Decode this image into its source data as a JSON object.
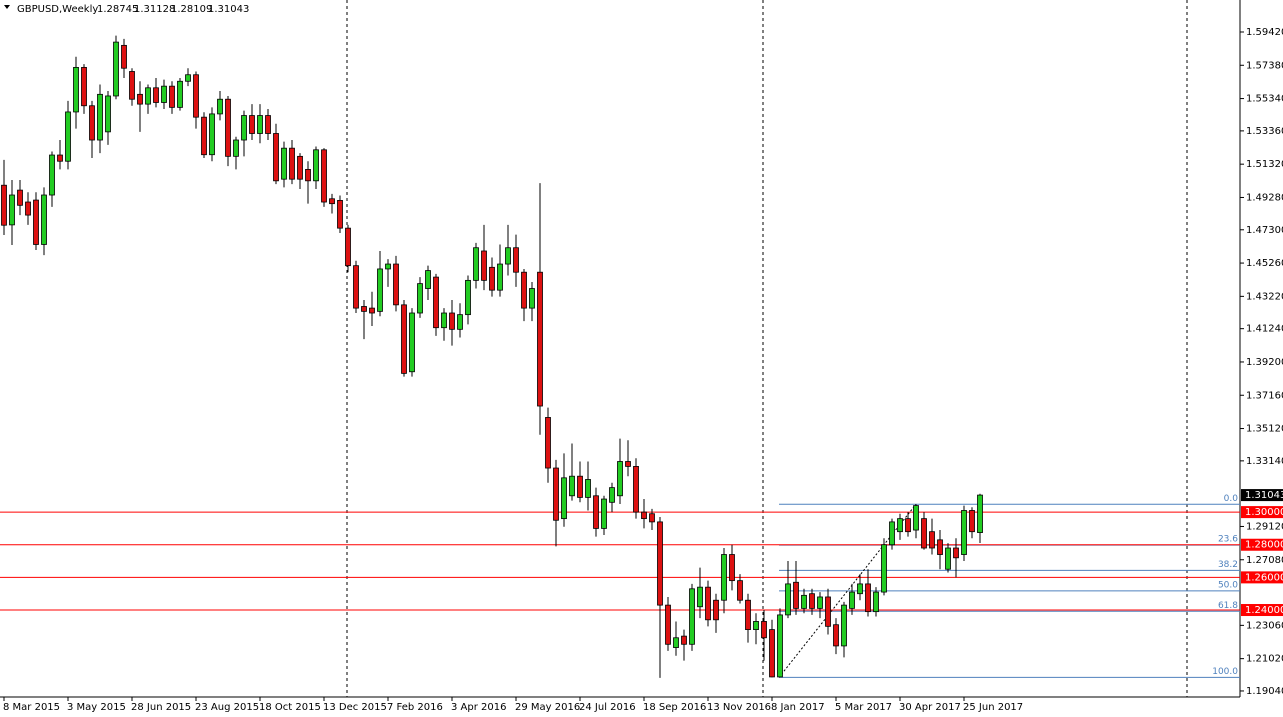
{
  "chart_data": {
    "type": "candlestick",
    "title": "GBPUSD,Weekly",
    "categories": [
      "8 Mar 2015",
      null,
      null,
      null,
      null,
      null,
      null,
      null,
      "3 May 2015",
      null,
      null,
      null,
      null,
      null,
      null,
      null,
      "28 Jun 2015",
      null,
      null,
      null,
      null,
      null,
      null,
      null,
      "23 Aug 2015",
      null,
      null,
      null,
      null,
      null,
      null,
      null,
      "18 Oct 2015",
      null,
      null,
      null,
      null,
      null,
      null,
      null,
      "13 Dec 2015",
      null,
      null,
      null,
      null,
      null,
      null,
      null,
      "7 Feb 2016",
      null,
      null,
      null,
      null,
      null,
      null,
      null,
      "3 Apr 2016",
      null,
      null,
      null,
      null,
      null,
      null,
      null,
      "29 May 2016",
      null,
      null,
      null,
      null,
      null,
      null,
      null,
      "24 Jul 2016",
      null,
      null,
      null,
      null,
      null,
      null,
      null,
      "18 Sep 2016",
      null,
      null,
      null,
      null,
      null,
      null,
      null,
      "13 Nov 2016",
      null,
      null,
      null,
      null,
      null,
      null,
      null,
      "8 Jan 2017",
      null,
      null,
      null,
      null,
      null,
      null,
      null,
      "5 Mar 2017",
      null,
      null,
      null,
      null,
      null,
      null,
      null,
      "30 Apr 2017",
      null,
      null,
      null,
      null,
      null,
      null,
      null,
      "25 Jun 2017",
      null,
      null
    ],
    "open": [
      1.5003,
      1.476,
      1.4973,
      1.49,
      1.4912,
      1.464,
      1.4943,
      1.5188,
      1.515,
      1.5452,
      1.5725,
      1.549,
      1.528,
      1.533,
      1.555,
      1.586,
      1.57,
      1.556,
      1.55,
      1.56,
      1.551,
      1.561,
      1.548,
      1.564,
      1.568,
      1.542,
      1.519,
      1.544,
      1.553,
      1.518,
      1.528,
      1.543,
      1.532,
      1.543,
      1.532,
      1.504,
      1.523,
      1.518,
      1.51,
      1.503,
      1.522,
      1.492,
      1.491,
      1.474,
      1.451,
      1.426,
      1.425,
      1.423,
      1.449,
      1.452,
      1.427,
      1.386,
      1.422,
      1.437,
      1.444,
      1.413,
      1.422,
      1.412,
      1.421,
      1.442,
      1.46,
      1.45,
      1.436,
      1.452,
      1.462,
      1.447,
      1.425,
      1.447,
      1.358,
      1.327,
      1.296,
      1.31,
      1.322,
      1.309,
      1.31,
      1.29,
      1.306,
      1.31,
      1.331,
      1.328,
      1.3,
      1.299,
      1.294,
      1.243,
      1.217,
      1.224,
      1.219,
      1.242,
      1.254,
      1.246,
      1.246,
      1.274,
      1.258,
      1.246,
      1.228,
      1.233,
      1.228,
      1.199,
      1.237,
      1.257,
      1.241,
      1.25,
      1.241,
      1.248,
      1.231,
      1.218,
      1.241,
      1.25,
      1.256,
      1.239,
      1.251,
      1.28,
      1.288,
      1.296,
      1.289,
      1.296,
      1.288,
      1.283,
      1.265,
      1.278,
      1.274,
      1.301,
      1.28745
    ],
    "high": [
      1.5158,
      1.5035,
      1.5035,
      1.496,
      1.496,
      1.499,
      1.521,
      1.528,
      1.552,
      1.579,
      1.5745,
      1.552,
      1.562,
      1.558,
      1.592,
      1.59,
      1.572,
      1.564,
      1.562,
      1.566,
      1.565,
      1.564,
      1.566,
      1.572,
      1.57,
      1.545,
      1.548,
      1.558,
      1.555,
      1.53,
      1.546,
      1.55,
      1.55,
      1.547,
      1.538,
      1.527,
      1.528,
      1.52,
      1.515,
      1.524,
      1.523,
      1.495,
      1.494,
      1.476,
      1.454,
      1.43,
      1.435,
      1.46,
      1.455,
      1.457,
      1.43,
      1.425,
      1.444,
      1.451,
      1.446,
      1.425,
      1.43,
      1.428,
      1.445,
      1.465,
      1.476,
      1.456,
      1.464,
      1.476,
      1.47,
      1.449,
      1.441,
      1.5016,
      1.364,
      1.332,
      1.336,
      1.342,
      1.331,
      1.331,
      1.315,
      1.31,
      1.318,
      1.345,
      1.344,
      1.333,
      1.308,
      1.302,
      1.297,
      1.248,
      1.233,
      1.228,
      1.256,
      1.266,
      1.258,
      1.25,
      1.278,
      1.28,
      1.262,
      1.25,
      1.238,
      1.24,
      1.234,
      1.241,
      1.27,
      1.27,
      1.253,
      1.253,
      1.251,
      1.253,
      1.235,
      1.245,
      1.256,
      1.262,
      1.265,
      1.254,
      1.284,
      1.296,
      1.299,
      1.3,
      1.3048,
      1.3,
      1.296,
      1.289,
      1.281,
      1.284,
      1.304,
      1.303,
      1.31128
    ],
    "low": [
      1.4698,
      1.4637,
      1.482,
      1.476,
      1.4606,
      1.4575,
      1.487,
      1.51,
      1.51,
      1.535,
      1.544,
      1.517,
      1.52,
      1.525,
      1.553,
      1.566,
      1.549,
      1.533,
      1.544,
      1.548,
      1.547,
      1.544,
      1.546,
      1.561,
      1.535,
      1.517,
      1.515,
      1.54,
      1.512,
      1.51,
      1.518,
      1.528,
      1.526,
      1.528,
      1.501,
      1.499,
      1.501,
      1.498,
      1.489,
      1.498,
      1.487,
      1.483,
      1.471,
      1.447,
      1.422,
      1.406,
      1.414,
      1.42,
      1.438,
      1.423,
      1.383,
      1.383,
      1.419,
      1.43,
      1.408,
      1.405,
      1.402,
      1.407,
      1.415,
      1.437,
      1.436,
      1.432,
      1.432,
      1.445,
      1.438,
      1.417,
      1.417,
      1.3474,
      1.318,
      1.279,
      1.291,
      1.307,
      1.306,
      1.301,
      1.285,
      1.286,
      1.3,
      1.305,
      1.322,
      1.296,
      1.29,
      1.289,
      1.1984,
      1.215,
      1.212,
      1.209,
      1.215,
      1.235,
      1.23,
      1.226,
      1.238,
      1.252,
      1.244,
      1.22,
      1.219,
      1.209,
      1.1987,
      1.199,
      1.235,
      1.237,
      1.238,
      1.237,
      1.235,
      1.225,
      1.213,
      1.211,
      1.237,
      1.246,
      1.236,
      1.236,
      1.249,
      1.277,
      1.283,
      1.285,
      1.284,
      1.277,
      1.274,
      1.265,
      1.263,
      1.26,
      1.27,
      1.284,
      1.28109
    ],
    "close": [
      1.4758,
      1.4943,
      1.488,
      1.482,
      1.464,
      1.4943,
      1.5188,
      1.515,
      1.5452,
      1.5725,
      1.549,
      1.528,
      1.556,
      1.555,
      1.588,
      1.572,
      1.553,
      1.55,
      1.56,
      1.551,
      1.561,
      1.548,
      1.564,
      1.568,
      1.542,
      1.519,
      1.544,
      1.553,
      1.518,
      1.528,
      1.543,
      1.532,
      1.543,
      1.532,
      1.503,
      1.523,
      1.504,
      1.504,
      1.503,
      1.522,
      1.49,
      1.489,
      1.474,
      1.451,
      1.425,
      1.423,
      1.422,
      1.449,
      1.452,
      1.427,
      1.385,
      1.422,
      1.44,
      1.448,
      1.413,
      1.422,
      1.412,
      1.421,
      1.442,
      1.462,
      1.442,
      1.436,
      1.452,
      1.462,
      1.447,
      1.425,
      1.437,
      1.365,
      1.327,
      1.295,
      1.321,
      1.322,
      1.309,
      1.32,
      1.29,
      1.308,
      1.315,
      1.331,
      1.328,
      1.3,
      1.296,
      1.294,
      1.243,
      1.219,
      1.223,
      1.219,
      1.253,
      1.254,
      1.234,
      1.234,
      1.274,
      1.258,
      1.246,
      1.228,
      1.233,
      1.223,
      1.199,
      1.237,
      1.256,
      1.241,
      1.249,
      1.241,
      1.248,
      1.23,
      1.218,
      1.243,
      1.251,
      1.256,
      1.239,
      1.251,
      1.28,
      1.294,
      1.296,
      1.288,
      1.304,
      1.278,
      1.278,
      1.274,
      1.278,
      1.272,
      1.301,
      1.288,
      1.31043
    ],
    "up_color": "#22cc22",
    "down_color": "#dd1111",
    "ylim": [
      1.1867,
      1.6138
    ],
    "yticks": [
      {
        "value": 1.5942,
        "label": "1.59420"
      },
      {
        "value": 1.5738,
        "label": "1.57380"
      },
      {
        "value": 1.5534,
        "label": "1.55340"
      },
      {
        "value": 1.5336,
        "label": "1.53360"
      },
      {
        "value": 1.5132,
        "label": "1.51320"
      },
      {
        "value": 1.4928,
        "label": "1.49280"
      },
      {
        "value": 1.473,
        "label": "1.47300"
      },
      {
        "value": 1.4526,
        "label": "1.45260"
      },
      {
        "value": 1.4322,
        "label": "1.43220"
      },
      {
        "value": 1.4124,
        "label": "1.41240"
      },
      {
        "value": 1.392,
        "label": "1.39200"
      },
      {
        "value": 1.3716,
        "label": "1.37160"
      },
      {
        "value": 1.3512,
        "label": "1.35120"
      },
      {
        "value": 1.3314,
        "label": "1.33140"
      },
      {
        "value": 1.2912,
        "label": "1.29120"
      },
      {
        "value": 1.2708,
        "label": "1.27080"
      },
      {
        "value": 1.2306,
        "label": "1.23060"
      },
      {
        "value": 1.2102,
        "label": "1.21020"
      },
      {
        "value": 1.1904,
        "label": "1.19040"
      }
    ],
    "price_lines": [
      {
        "value": 1.3,
        "label": "1.30000"
      },
      {
        "value": 1.28,
        "label": "1.28000"
      },
      {
        "value": 1.26,
        "label": "1.26000"
      },
      {
        "value": 1.24,
        "label": "1.24000"
      }
    ],
    "price_line_color": "#ff0000",
    "current_price": 1.31043,
    "fibonacci": {
      "high": 1.3048,
      "low": 1.1987,
      "color": "#4f81bd",
      "levels": [
        {
          "value": 0,
          "label": "0.0"
        },
        23.6,
        38.2,
        {
          "value": 50,
          "label": "50.0"
        },
        61.8,
        {
          "value": 100,
          "label": "100.0"
        }
      ]
    }
  }
}
